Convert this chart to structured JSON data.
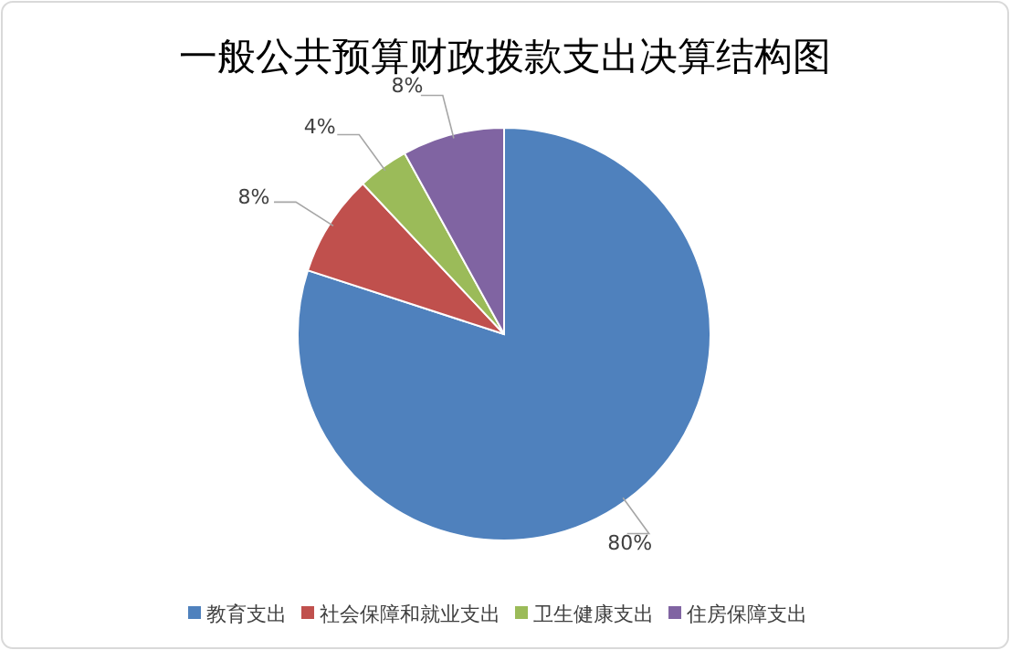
{
  "chart_data": {
    "type": "pie",
    "title": "一般公共预算财政拨款支出决算结构图",
    "categories": [
      "教育支出",
      "社会保障和就业支出",
      "卫生健康支出",
      "住房保障支出"
    ],
    "values": [
      80,
      8,
      4,
      8
    ],
    "colors": [
      "#4f81bd",
      "#c0504d",
      "#9bbb59",
      "#8064a2"
    ],
    "value_labels": [
      "80%",
      "8%",
      "4%",
      "8%"
    ],
    "legend": "bottom"
  }
}
